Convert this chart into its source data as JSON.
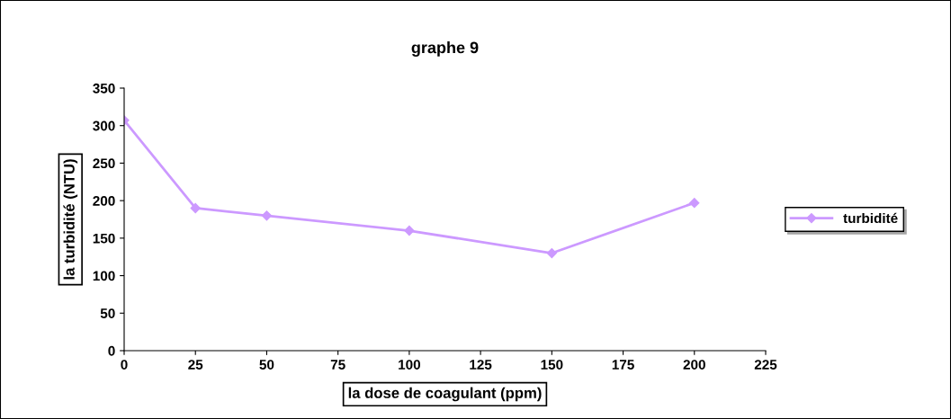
{
  "chart_data": {
    "type": "line",
    "title": "graphe 9",
    "xlabel": "la dose de coagulant (ppm)",
    "ylabel": "la turbidité (NTU)",
    "x": [
      0,
      25,
      50,
      100,
      150,
      200
    ],
    "series": [
      {
        "name": "turbidité",
        "color": "#cc99ff",
        "values": [
          307,
          190,
          180,
          160,
          130,
          197
        ]
      }
    ],
    "xlim": [
      0,
      225
    ],
    "xticks": [
      0,
      25,
      50,
      75,
      100,
      125,
      150,
      175,
      200,
      225
    ],
    "ylim": [
      0,
      350
    ],
    "yticks": [
      0,
      50,
      100,
      150,
      200,
      250,
      300,
      350
    ],
    "marker": "diamond",
    "line_style": "solid",
    "legend": "right",
    "grid": false
  }
}
